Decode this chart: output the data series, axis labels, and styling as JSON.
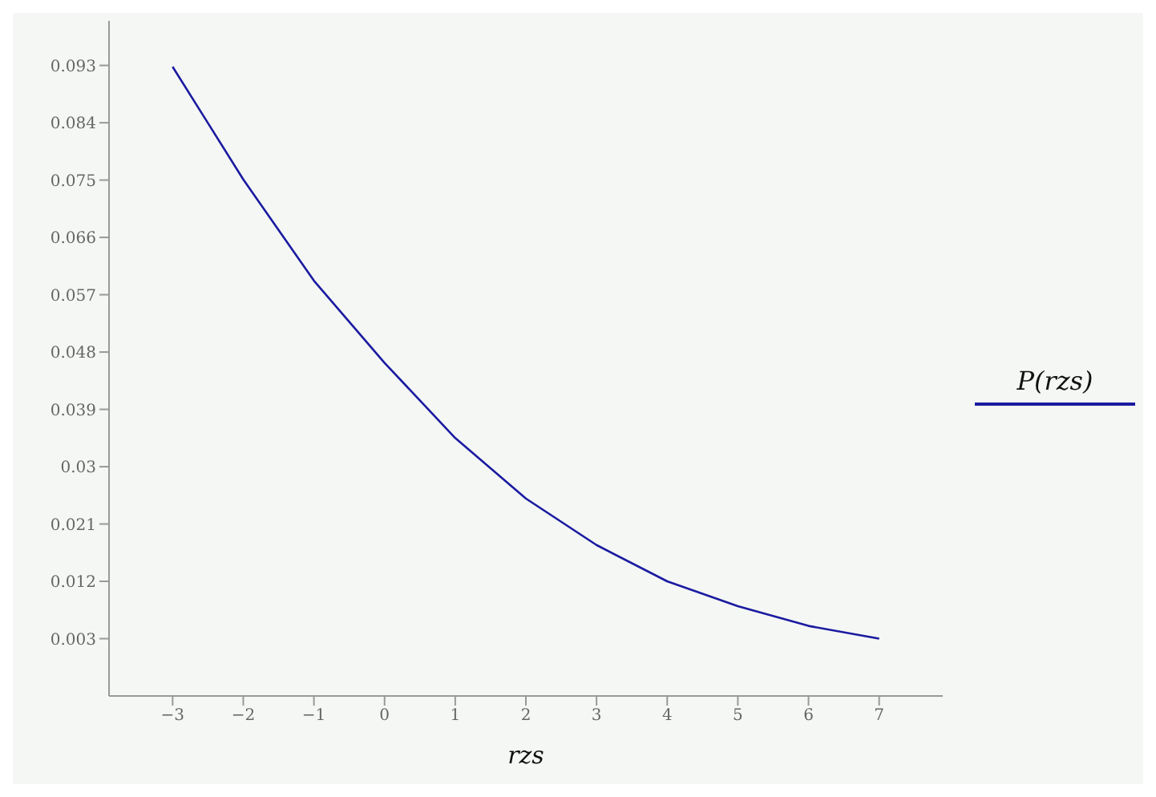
{
  "chart_data": {
    "type": "line",
    "xlabel": "rzs",
    "x": [
      -3,
      -2,
      -1,
      0,
      1,
      2,
      3,
      4,
      5,
      6,
      7
    ],
    "series": [
      {
        "name": "P(rzs)",
        "color": "#1a1aa0",
        "values": [
          0.0928,
          0.0751,
          0.0592,
          0.0463,
          0.0345,
          0.025,
          0.0177,
          0.012,
          0.0081,
          0.005,
          0.003
        ]
      }
    ],
    "xlim": [
      -3.9,
      7.9
    ],
    "xticks": [
      -3,
      -2,
      -1,
      0,
      1,
      2,
      3,
      4,
      5,
      6,
      7
    ],
    "ylim": [
      -0.006,
      0.1
    ],
    "yticks": [
      0.003,
      0.012,
      0.021,
      0.03,
      0.039,
      0.048,
      0.057,
      0.066,
      0.075,
      0.084,
      0.093
    ],
    "grid": false,
    "legend": "right",
    "marker": "none",
    "line_style": "solid"
  }
}
